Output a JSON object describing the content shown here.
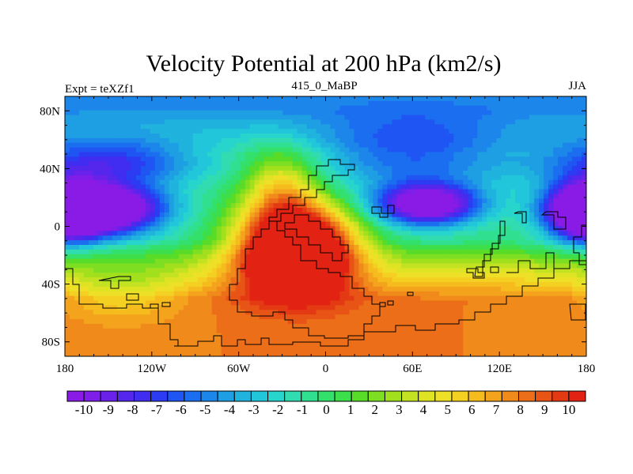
{
  "chart_data": {
    "type": "heatmap",
    "title": "Velocity Potential at 200 hPa (km2/s)",
    "left_label": "Expt = teXZf1",
    "center_label": "415_0_MaBP",
    "right_label": "JJA",
    "x_ticks": [
      {
        "value": -180,
        "label": "180"
      },
      {
        "value": -120,
        "label": "120W"
      },
      {
        "value": -60,
        "label": "60W"
      },
      {
        "value": 0,
        "label": "0"
      },
      {
        "value": 60,
        "label": "60E"
      },
      {
        "value": 120,
        "label": "120E"
      },
      {
        "value": 180,
        "label": "180"
      }
    ],
    "y_ticks": [
      {
        "value": 80,
        "label": "80N"
      },
      {
        "value": 40,
        "label": "40N"
      },
      {
        "value": 0,
        "label": "0"
      },
      {
        "value": -40,
        "label": "40S"
      },
      {
        "value": -80,
        "label": "80S"
      }
    ],
    "xlim": [
      -180,
      180
    ],
    "ylim": [
      -90,
      90
    ],
    "colorbar_labels": [
      "-10",
      "-9",
      "-8",
      "-7",
      "-6",
      "-5",
      "-4",
      "-3",
      "-2",
      "-1",
      "0",
      "1",
      "2",
      "3",
      "4",
      "5",
      "6",
      "7",
      "8",
      "9",
      "10"
    ],
    "colorbar_min": -10,
    "colorbar_max": 10,
    "colorbar_step": 0.5,
    "palette": [
      "#8a1ae6",
      "#7e1ee8",
      "#6a22ea",
      "#5526ec",
      "#402df0",
      "#2b3cf2",
      "#1f55f2",
      "#1c6ef0",
      "#1c86ea",
      "#1e9fe4",
      "#1fb3de",
      "#22c6da",
      "#28d5cc",
      "#30dcb0",
      "#30e090",
      "#34e06c",
      "#3cde4c",
      "#58dc28",
      "#7ede22",
      "#a2e01e",
      "#c2e222",
      "#dee424",
      "#eee026",
      "#f4d022",
      "#f6bc1e",
      "#f4a41c",
      "#f08a1a",
      "#ec6e18",
      "#e85416",
      "#e43a14",
      "#e22212"
    ],
    "field_components": [
      {
        "lon": -20,
        "lat": -15,
        "amp": 13,
        "sx": 28,
        "sy": 20
      },
      {
        "lon": -30,
        "lat": 25,
        "amp": 4,
        "sx": 18,
        "sy": 20
      },
      {
        "lon": -155,
        "lat": 12,
        "amp": -11,
        "sx": 30,
        "sy": 12
      },
      {
        "lon": 70,
        "lat": 15,
        "amp": -9,
        "sx": 25,
        "sy": 10
      },
      {
        "lon": 180,
        "lat": 10,
        "amp": -9,
        "sx": 18,
        "sy": 14
      },
      {
        "lon": -150,
        "lat": 45,
        "amp": -5,
        "sx": 45,
        "sy": 12
      },
      {
        "lon": 60,
        "lat": 50,
        "amp": -4,
        "sx": 50,
        "sy": 18
      },
      {
        "lon": -140,
        "lat": -45,
        "amp": -2,
        "sx": 30,
        "sy": 15
      }
    ],
    "field_background": -3,
    "field_south_increment": 6,
    "field_north_decrement": 3
  }
}
